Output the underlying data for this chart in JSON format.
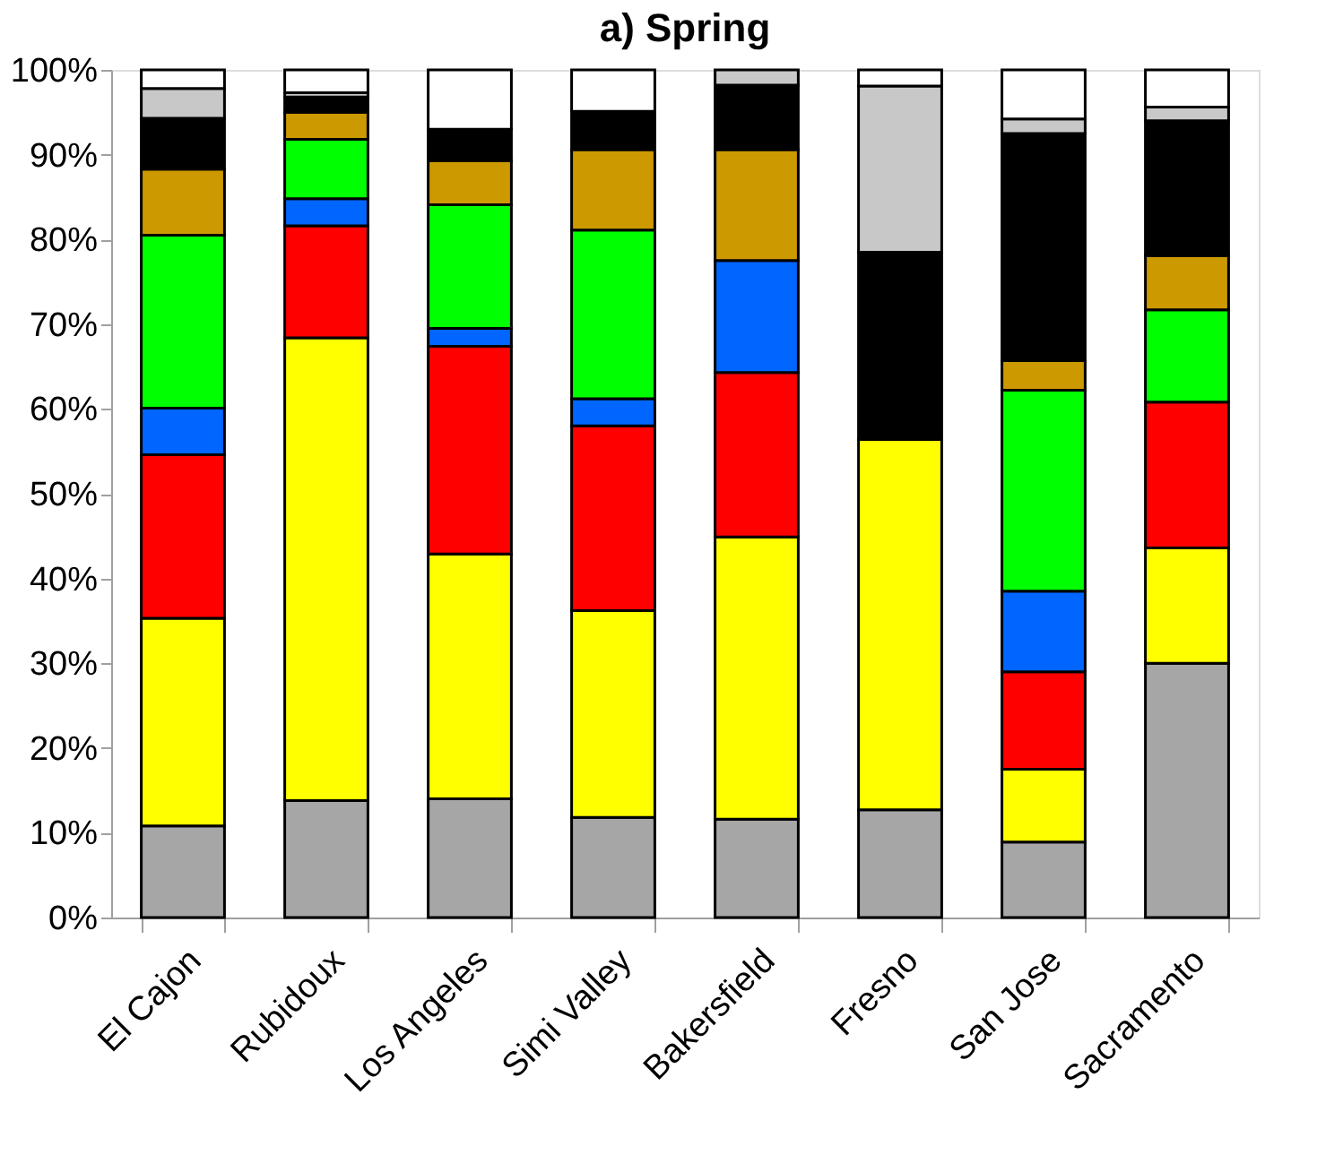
{
  "chart_data": {
    "type": "bar",
    "title": "a) Spring",
    "stacked": true,
    "categories": [
      "El Cajon",
      "Rubidoux",
      "Los Angeles",
      "Simi Valley",
      "Bakersfield",
      "Fresno",
      "San Jose",
      "Sacramento"
    ],
    "series": [
      {
        "color": "#a6a6a6",
        "values": [
          10.8,
          13.8,
          14.0,
          11.8,
          11.6,
          12.7,
          8.9,
          30.0
        ]
      },
      {
        "color": "#ffff00",
        "values": [
          24.5,
          54.6,
          28.9,
          24.4,
          33.3,
          43.7,
          8.6,
          13.6
        ]
      },
      {
        "color": "#ff0000",
        "values": [
          19.3,
          13.2,
          24.5,
          21.8,
          19.4,
          null,
          11.5,
          17.2
        ]
      },
      {
        "color": "#0066ff",
        "values": [
          5.5,
          3.2,
          2.1,
          3.2,
          13.2,
          null,
          9.5,
          null
        ]
      },
      {
        "color": "#00ff00",
        "values": [
          20.4,
          7.0,
          14.6,
          19.9,
          null,
          null,
          23.7,
          10.9
        ]
      },
      {
        "color": "#cc9900",
        "values": [
          7.8,
          3.2,
          5.2,
          9.5,
          13.1,
          null,
          3.5,
          6.4
        ]
      },
      {
        "color": "#000000",
        "values": [
          6.0,
          1.8,
          3.7,
          4.5,
          7.6,
          22.1,
          26.8,
          15.9
        ]
      },
      {
        "color": "#c8c8c8",
        "values": [
          3.5,
          0.5,
          null,
          null,
          1.8,
          19.6,
          1.7,
          1.6
        ]
      },
      {
        "color": "#ffffff",
        "values": [
          2.2,
          2.7,
          7.0,
          4.9,
          null,
          1.9,
          5.8,
          4.4
        ]
      }
    ],
    "ylim": [
      0,
      100
    ],
    "yticks": [
      {
        "value": 0,
        "label": "0%"
      },
      {
        "value": 10,
        "label": "10%"
      },
      {
        "value": 20,
        "label": "20%"
      },
      {
        "value": 30,
        "label": "30%"
      },
      {
        "value": 40,
        "label": "40%"
      },
      {
        "value": 50,
        "label": "50%"
      },
      {
        "value": 60,
        "label": "60%"
      },
      {
        "value": 70,
        "label": "70%"
      },
      {
        "value": 80,
        "label": "80%"
      },
      {
        "value": 90,
        "label": "90%"
      },
      {
        "value": 100,
        "label": "100%"
      }
    ],
    "grid": false,
    "legend": false
  }
}
